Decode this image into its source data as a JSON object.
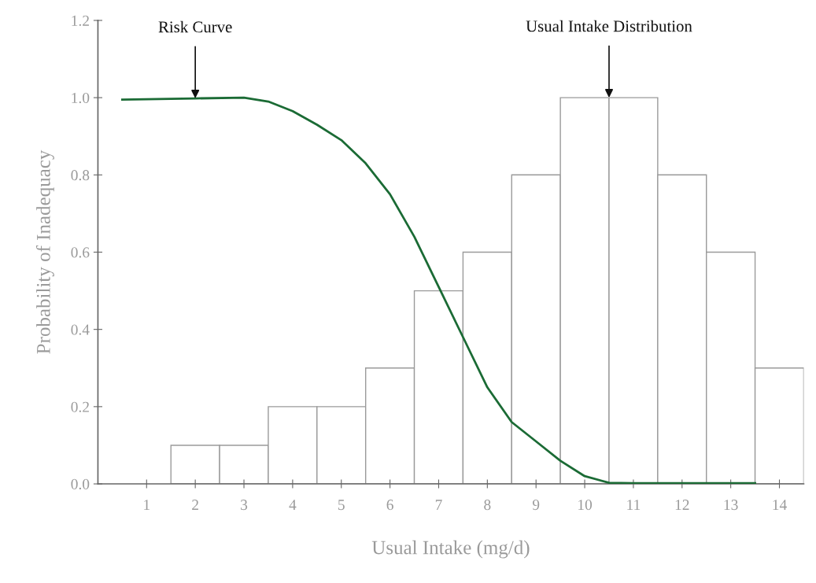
{
  "chart_data": [
    {
      "type": "histogram",
      "xlabel": "Usual Intake (mg/d)",
      "ylabel": "Probability of Inadequacy",
      "bins": [
        1.5,
        2.5,
        3.5,
        4.5,
        5.5,
        6.5,
        7.5,
        8.5,
        9.5,
        10.5,
        11.5,
        12.5,
        13.5,
        14.5
      ],
      "values": [
        0.1,
        0.1,
        0.2,
        0.2,
        0.3,
        0.5,
        0.6,
        0.8,
        1.0,
        1.0,
        0.8,
        0.6,
        0.3
      ],
      "color": "#9a9a9a",
      "series": [
        {
          "type": "line",
          "color": "#1b6b35",
          "x": [
            0.5,
            1,
            2,
            3,
            3.5,
            4,
            4.5,
            5,
            5.5,
            6,
            6.5,
            7,
            7.5,
            8,
            8.5,
            9,
            9.5,
            10,
            10.5,
            11,
            12,
            13,
            13.5
          ],
          "values": [
            0.995,
            0.996,
            0.998,
            1.0,
            0.99,
            0.965,
            0.93,
            0.89,
            0.83,
            0.75,
            0.64,
            0.51,
            0.38,
            0.25,
            0.16,
            0.11,
            0.06,
            0.02,
            0.003,
            0.002,
            0.002,
            0.002,
            0.002
          ]
        }
      ],
      "annotations": [
        {
          "text": "Risk Curve",
          "x": 2,
          "y": 0.998
        },
        {
          "text": "Usual Intake Distribution",
          "x": 10.5,
          "y": 1.0
        }
      ],
      "xlim": [
        0,
        14.5
      ],
      "xticks": [
        1,
        2,
        3,
        4,
        5,
        6,
        7,
        8,
        9,
        10,
        11,
        12,
        13,
        14
      ],
      "ylim": [
        0,
        1.2
      ],
      "yticks": [
        {
          "value": 0,
          "label": "0.0"
        },
        {
          "value": 0.2,
          "label": "0.2"
        },
        {
          "value": 0.4,
          "label": "0.4"
        },
        {
          "value": 0.6,
          "label": "0.6"
        },
        {
          "value": 0.8,
          "label": "0.8"
        },
        {
          "value": 1.0,
          "label": "1.0"
        },
        {
          "value": 1.2,
          "label": "1.2"
        }
      ],
      "grid": false,
      "legend": false
    }
  ]
}
